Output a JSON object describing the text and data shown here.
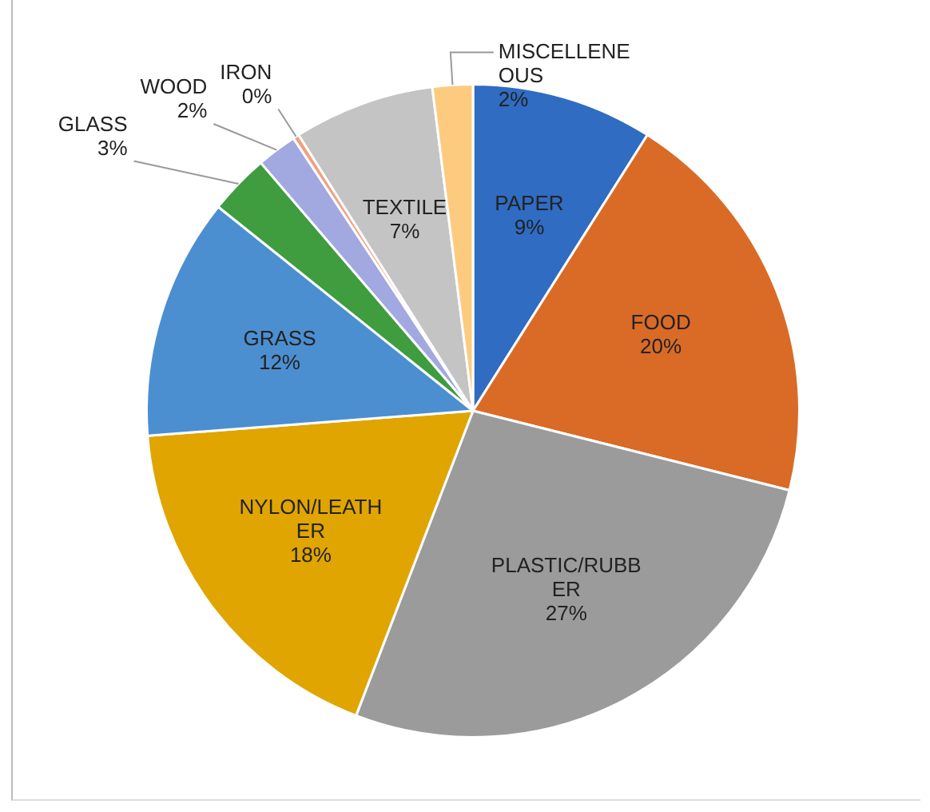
{
  "chart_data": {
    "type": "pie",
    "categories": [
      "PAPER",
      "FOOD",
      "PLASTIC/RUBBER",
      "NYLON/LEATHER",
      "GRASS",
      "GLASS",
      "WOOD",
      "IRON",
      "TEXTILE",
      "MISCELLENEOUS"
    ],
    "values": [
      9,
      20,
      27,
      18,
      12,
      3,
      2,
      0.3,
      7,
      2
    ],
    "value_labels": [
      "9%",
      "20%",
      "27%",
      "18%",
      "12%",
      "3%",
      "2%",
      "0%",
      "7%",
      "2%"
    ],
    "colors": [
      "#2f6cc2",
      "#d96b27",
      "#9b9b9b",
      "#e0a500",
      "#4c8fd0",
      "#3f9c3f",
      "#a2a8e0",
      "#f0a080",
      "#c4c4c4",
      "#fdcb80"
    ],
    "legend": false
  }
}
